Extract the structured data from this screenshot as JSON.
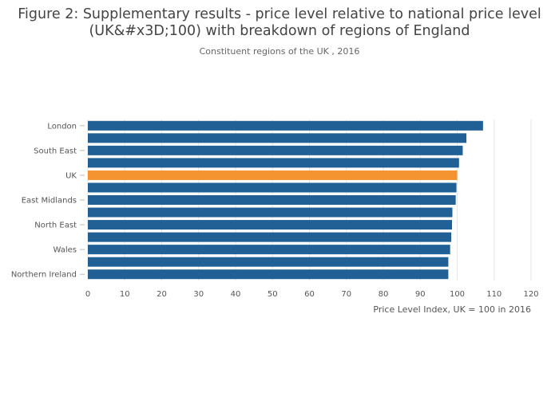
{
  "title_lines": [
    "Figure 2: Supplementary results - price level relative to national price level",
    "(UK&#x3D;100) with breakdown of regions of England"
  ],
  "subtitle": "Constituent regions of the UK , 2016",
  "colors": {
    "bar": "#206095",
    "highlight": "#f39431",
    "grid": "#e6e6e6"
  },
  "chart_data": {
    "type": "bar",
    "orientation": "horizontal",
    "categories": [
      "London",
      "",
      "South East",
      "",
      "UK",
      "",
      "East Midlands",
      "",
      "North East",
      "",
      "Wales",
      "",
      "Northern Ireland"
    ],
    "values": [
      107,
      102.5,
      101.5,
      100.5,
      100,
      99.8,
      99.6,
      98.7,
      98.6,
      98.4,
      98.1,
      97.6,
      97.6
    ],
    "highlight_category": "UK",
    "xlim": [
      0,
      120
    ],
    "xticks": [
      0,
      10,
      20,
      30,
      40,
      50,
      60,
      70,
      80,
      90,
      100,
      110,
      120
    ],
    "xlabel": "Price Level Index, UK = 100 in 2016",
    "ylabel": "",
    "grid": true,
    "legend": "none"
  }
}
